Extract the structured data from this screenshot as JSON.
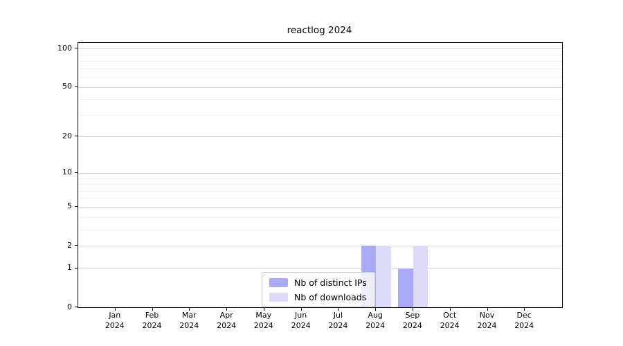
{
  "title": "reactlog 2024",
  "chart_data": {
    "type": "bar",
    "title": "reactlog 2024",
    "categories": [
      "Jan 2024",
      "Feb 2024",
      "Mar 2024",
      "Apr 2024",
      "May 2024",
      "Jun 2024",
      "Jul 2024",
      "Aug 2024",
      "Sep 2024",
      "Oct 2024",
      "Nov 2024",
      "Dec 2024"
    ],
    "series": [
      {
        "name": "Nb of distinct IPs",
        "color": "#a9a9f6",
        "values": [
          0,
          0,
          0,
          0,
          0,
          0,
          0,
          2,
          1,
          0,
          0,
          0
        ]
      },
      {
        "name": "Nb of downloads",
        "color": "#dbdbf8",
        "values": [
          0,
          0,
          0,
          0,
          0,
          0,
          0,
          2,
          2,
          0,
          0,
          0
        ]
      }
    ],
    "xlabel": "",
    "ylabel": "",
    "y_axis": {
      "scale": "log1p",
      "ticks": [
        0,
        1,
        2,
        5,
        10,
        20,
        50,
        100
      ],
      "minor_gridlines": [
        3,
        4,
        6,
        7,
        8,
        9,
        30,
        40,
        60,
        70,
        80,
        90
      ],
      "ylim": [
        0,
        110
      ]
    },
    "grid": "horizontal",
    "legend_position": "bottom-center",
    "legend_entries": [
      "Nb of distinct IPs",
      "Nb of downloads"
    ]
  },
  "colors": {
    "background": "#ffffff",
    "axis": "#000000",
    "major_grid": "#d4d4d4",
    "minor_grid": "#f0f0f0",
    "series_dark": "#a9a9f6",
    "series_light": "#dbdbf8",
    "legend_border": "#cccccc"
  }
}
